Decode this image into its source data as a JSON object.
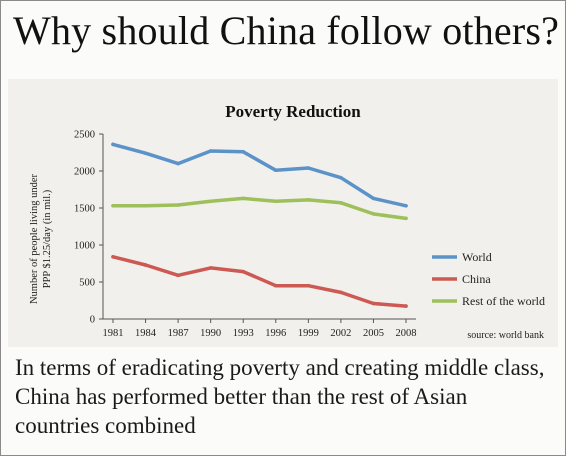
{
  "slide": {
    "title": "Why should China follow others?",
    "caption": "In terms of eradicating poverty and creating middle class, China has performed better than the rest of Asian countries combined"
  },
  "chart_data": {
    "type": "line",
    "title": "Poverty Reduction",
    "ylabel": "Number of people living under PPP $1.25/day (in mil.)",
    "xlabel": "",
    "ylim": [
      0,
      2500
    ],
    "yticks": [
      0,
      500,
      1000,
      1500,
      2000,
      2500
    ],
    "x": [
      "1981",
      "1984",
      "1987",
      "1990",
      "1993",
      "1996",
      "1999",
      "2002",
      "2005",
      "2008"
    ],
    "series": [
      {
        "name": "World",
        "color": "#5b93c9",
        "values": [
          2360,
          2240,
          2100,
          2270,
          2260,
          2010,
          2040,
          1910,
          1630,
          1530
        ]
      },
      {
        "name": "China",
        "color": "#cc5a52",
        "values": [
          840,
          730,
          590,
          690,
          640,
          450,
          450,
          360,
          210,
          175
        ]
      },
      {
        "name": "Rest of the world",
        "color": "#9dc05b",
        "values": [
          1530,
          1530,
          1540,
          1590,
          1630,
          1590,
          1610,
          1570,
          1420,
          1360
        ]
      }
    ],
    "legend_position": "right",
    "grid": false,
    "source": "source: world bank"
  }
}
